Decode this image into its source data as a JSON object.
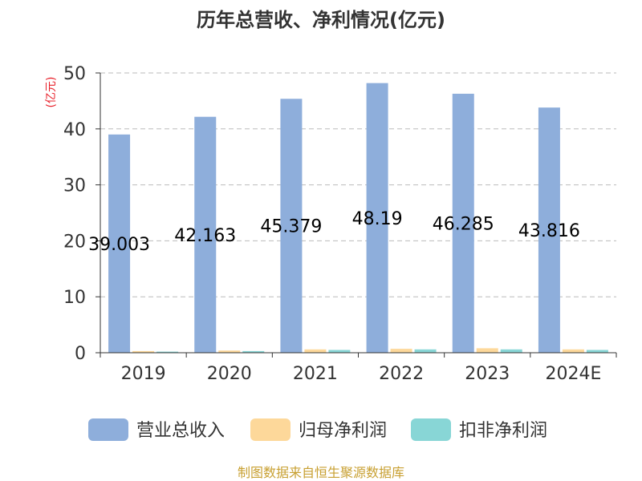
{
  "chart_data": {
    "type": "bar",
    "title": "历年总营收、净利情况(亿元)",
    "unit_label": "(亿元)",
    "categories": [
      "2019",
      "2020",
      "2021",
      "2022",
      "2023",
      "2024E"
    ],
    "ylim": [
      0,
      50
    ],
    "yticks": [
      0,
      10,
      20,
      30,
      40,
      50
    ],
    "grid": true,
    "legend_position": "bottom",
    "series": [
      {
        "name": "营业总收入",
        "color": "#8eaedb",
        "values": [
          39.003,
          42.163,
          45.379,
          48.19,
          46.285,
          43.816
        ],
        "data_labels": [
          "39.003",
          "42.163",
          "45.379",
          "48.19",
          "46.285",
          "43.816"
        ]
      },
      {
        "name": "归母净利润",
        "color": "#fdd89a",
        "values": [
          0.3,
          0.4,
          0.6,
          0.7,
          0.8,
          0.6
        ]
      },
      {
        "name": "扣非净利润",
        "color": "#88d6d6",
        "values": [
          0.2,
          0.3,
          0.5,
          0.6,
          0.6,
          0.5
        ]
      }
    ]
  },
  "footer": {
    "source": "制图数据来自恒生聚源数据库"
  }
}
